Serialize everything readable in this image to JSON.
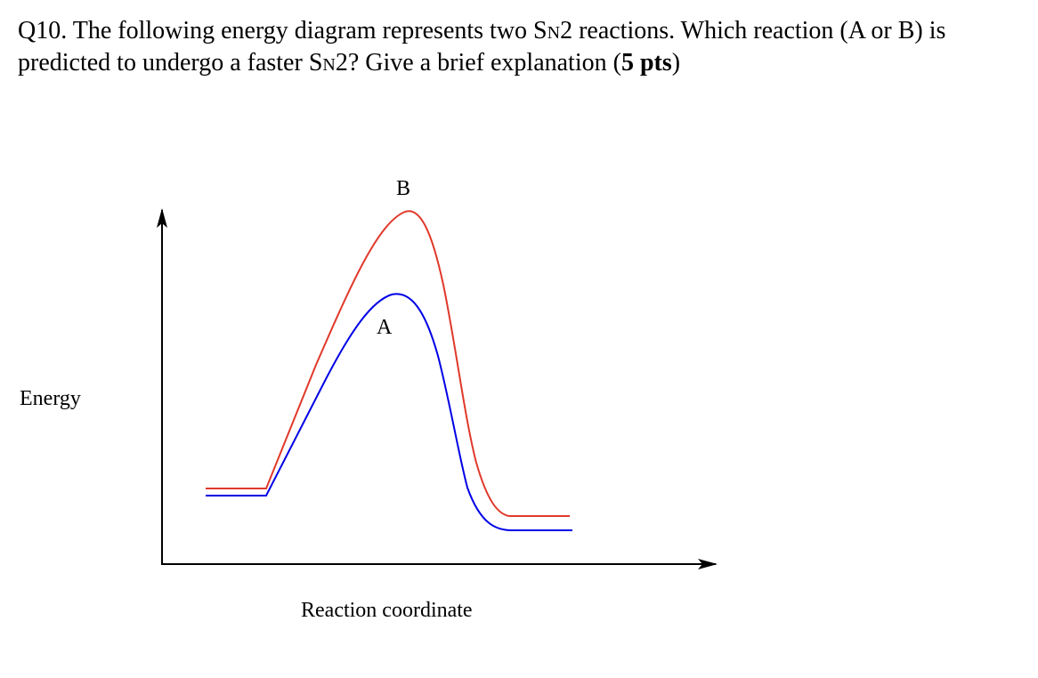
{
  "question": {
    "prefix": "Q10. The following energy diagram represents two ",
    "sn_main": "S",
    "sn_sub": "N",
    "middle": "2 reactions. Which reaction (A or B) is predicted to undergo a faster ",
    "sn2_main": "S",
    "sn2_sub": "N",
    "suffix": "2? Give a brief explanation (",
    "points": "5 pts",
    "end": ")"
  },
  "diagram": {
    "y_axis_label": "Energy",
    "x_axis_label": "Reaction coordinate",
    "curves": [
      {
        "name": "B",
        "color": "#e0392b",
        "barrier": "higher"
      },
      {
        "name": "A",
        "color": "#0000e6",
        "barrier": "lower"
      }
    ],
    "axis_color": "#000000"
  }
}
